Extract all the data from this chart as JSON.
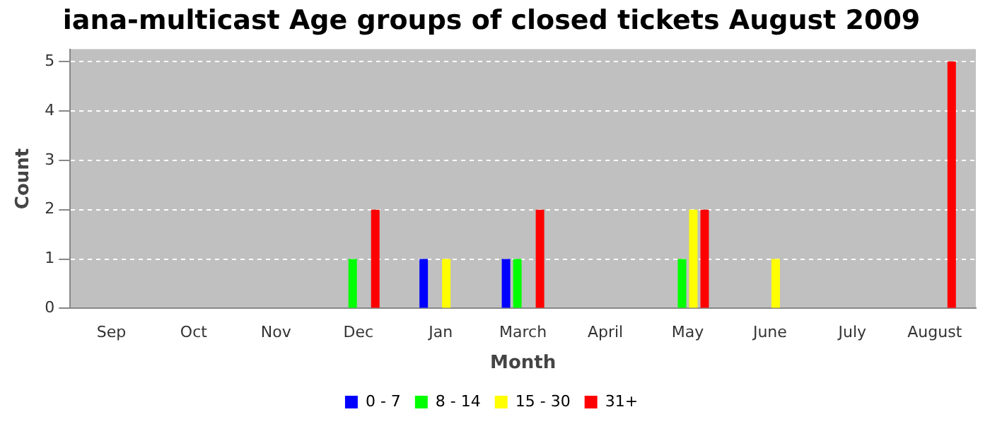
{
  "chart_data": {
    "type": "bar",
    "title": "iana-multicast Age groups of closed tickets August 2009",
    "xlabel": "Month",
    "ylabel": "Count",
    "categories": [
      "Sep",
      "Oct",
      "Nov",
      "Dec",
      "Jan",
      "March",
      "April",
      "May",
      "June",
      "July",
      "August"
    ],
    "series": [
      {
        "name": "0 - 7",
        "color": "#0000ff",
        "values": [
          0,
          0,
          0,
          0,
          1,
          1,
          0,
          0,
          0,
          0,
          0
        ]
      },
      {
        "name": "8 - 14",
        "color": "#00ff00",
        "values": [
          0,
          0,
          0,
          1,
          0,
          1,
          0,
          1,
          0,
          0,
          0
        ]
      },
      {
        "name": "15 - 30",
        "color": "#ffff00",
        "values": [
          0,
          0,
          0,
          0,
          1,
          0,
          0,
          2,
          1,
          0,
          0
        ]
      },
      {
        "name": "31+",
        "color": "#ff0000",
        "values": [
          0,
          0,
          0,
          2,
          0,
          2,
          0,
          2,
          0,
          0,
          5
        ]
      }
    ],
    "ylim": [
      0,
      5.25
    ],
    "yticks": [
      0,
      1,
      2,
      3,
      4,
      5
    ],
    "grid": "y",
    "legend": "bottom"
  }
}
